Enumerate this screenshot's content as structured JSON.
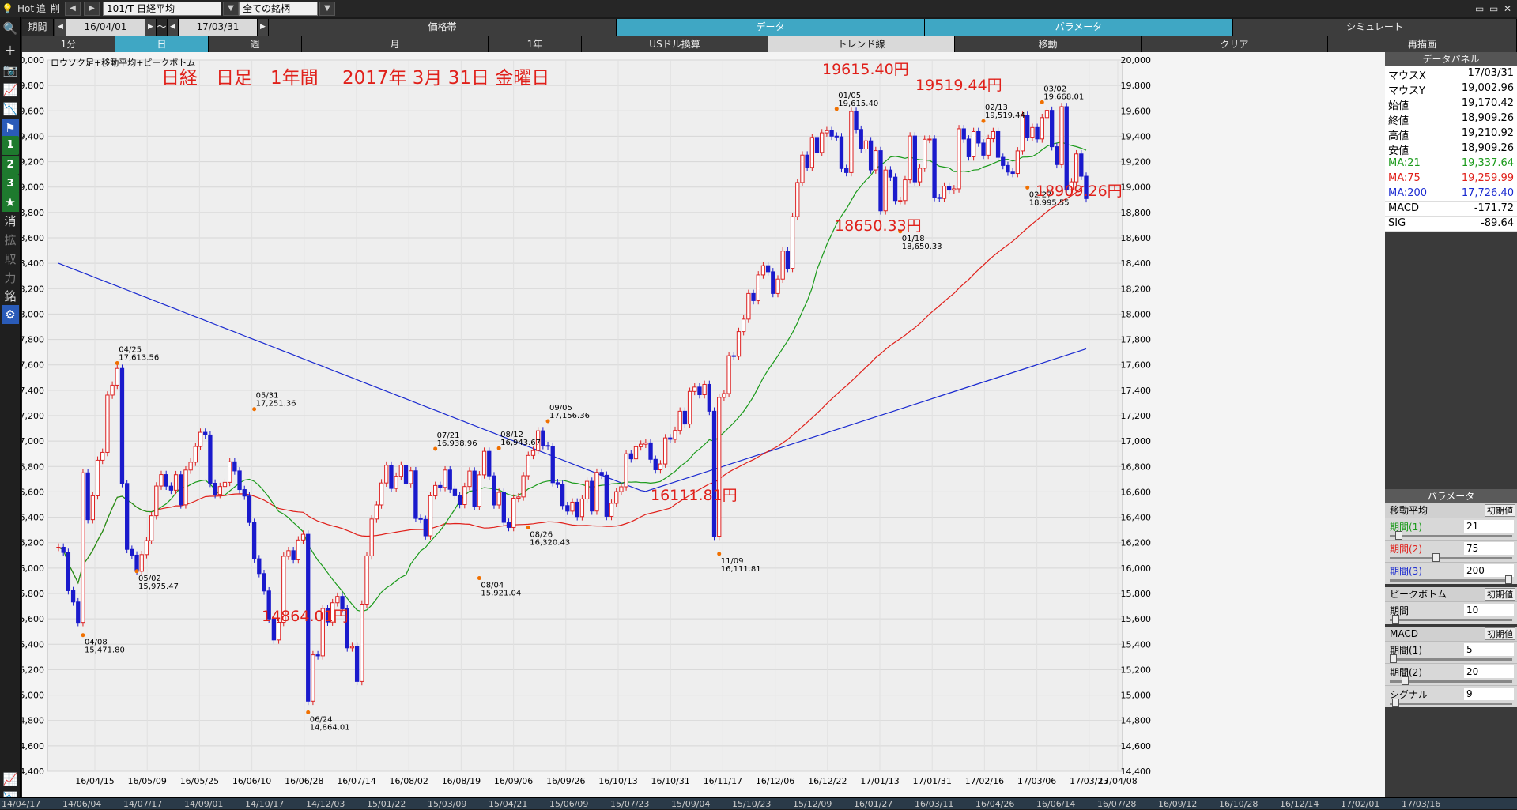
{
  "topbar": {
    "hot": "Hot",
    "add": "追",
    "del": "削",
    "symbol": "101/T 日経平均",
    "list": "全ての銘柄"
  },
  "period": {
    "label": "期間",
    "from": "16/04/01",
    "sep": "～",
    "to": "17/03/31"
  },
  "tabs_row2": [
    "価格帯",
    "データ",
    "パラメータ",
    "シミュレート"
  ],
  "tabs_row3": [
    "1分",
    "日",
    "週",
    "月",
    "1年",
    "USドル換算",
    "トレンド線",
    "移動",
    "クリア",
    "再描画"
  ],
  "tools": {
    "n1": "1",
    "n2": "2",
    "n3": "3",
    "k1": "消",
    "k2": "拡",
    "k3": "取",
    "k4": "力",
    "k5": "銘"
  },
  "chart_data": {
    "type": "candlestick",
    "legend": "ロウソク足+移動平均+ピークボトム",
    "title": "日経　日足　1年間　 2017年 3月 31日 金曜日",
    "ylim": [
      14400,
      20000
    ],
    "ticks_y": [
      "20,000",
      "19,800",
      "19,600",
      "19,400",
      "19,200",
      "19,000",
      "18,800",
      "18,600",
      "18,400",
      "18,200",
      "18,000",
      "17,800",
      "17,600",
      "17,400",
      "17,200",
      "17,000",
      "16,800",
      "16,600",
      "16,400",
      "16,200",
      "16,000",
      "15,800",
      "15,600",
      "15,400",
      "15,200",
      "15,000",
      "14,800",
      "14,600",
      "14,400"
    ],
    "ticks_x": [
      "16/04/15",
      "16/05/09",
      "16/05/25",
      "16/06/10",
      "16/06/28",
      "16/07/14",
      "16/08/02",
      "16/08/19",
      "16/09/06",
      "16/09/26",
      "16/10/13",
      "16/10/31",
      "16/11/17",
      "16/12/06",
      "16/12/22",
      "17/01/13",
      "17/01/31",
      "17/02/16",
      "17/03/06",
      "17/03/23",
      "17/04/08"
    ],
    "closes": [
      16164,
      16123,
      15822,
      15733,
      15572,
      16750,
      16381,
      16569,
      16849,
      16911,
      17362,
      17440,
      17572,
      16666,
      16147,
      16102,
      15975,
      16106,
      16216,
      16412,
      16646,
      16736,
      16645,
      16613,
      16735,
      16498,
      16772,
      16834,
      16957,
      17069,
      17048,
      16668,
      16580,
      16642,
      16675,
      16837,
      16765,
      16618,
      16567,
      16359,
      16073,
      15957,
      15820,
      15600,
      15434,
      15573,
      16093,
      16137,
      16065,
      16221,
      16266,
      14952,
      15317,
      15309,
      15682,
      15575,
      15727,
      15777,
      15679,
      15372,
      15382,
      15107,
      15716,
      16096,
      16386,
      16497,
      16670,
      16810,
      16627,
      16723,
      16811,
      16665,
      16766,
      16391,
      16383,
      16254,
      16569,
      16650,
      16635,
      16772,
      16620,
      16569,
      16500,
      16642,
      16764,
      16486,
      16734,
      16919,
      16726,
      16497,
      16596,
      16360,
      16320,
      16550,
      16560,
      16727,
      16887,
      16925,
      17081,
      16965,
      16959,
      16672,
      16658,
      16492,
      16448,
      16519,
      16405,
      16544,
      16683,
      16449,
      16754,
      16731,
      16407,
      16510,
      16602,
      16640,
      16900,
      16860,
      16955,
      16975,
      16986,
      16856,
      16774,
      16820,
      17025,
      17014,
      17084,
      17235,
      17134,
      17391,
      17425,
      17365,
      17446,
      17235,
      16251,
      17344,
      17374,
      17672,
      17668,
      17862,
      17960,
      18162,
      18106,
      18308,
      18381,
      18333,
      18162,
      18275,
      18496,
      18360,
      18767,
      19036,
      19252,
      19155,
      19391,
      19273,
      19427,
      19444,
      19401,
      19396,
      19146,
      19114,
      19595,
      19454,
      19300,
      19364,
      19135,
      19287,
      18813,
      19134,
      19078,
      18894,
      18894,
      19057,
      19402,
      19041,
      19148,
      19376,
      19378,
      18918,
      18910,
      19007,
      18976,
      18986,
      19459,
      19378,
      19238,
      19437,
      19347,
      19251,
      19381,
      19437,
      19234,
      19170,
      19118,
      19107,
      19285,
      19564,
      19393,
      19469,
      19379,
      19547,
      19604,
      19318,
      19177,
      19633,
      18979,
      19041,
      19261,
      19085,
      18909
    ],
    "ma21_end": 19337.64,
    "ma75_end": 19259.99,
    "ma200_end": 17726.4,
    "peaks": [
      {
        "date": "04/08",
        "value": "15,471.80",
        "type": "bottom"
      },
      {
        "date": "04/25",
        "value": "17,613.56",
        "type": "peak"
      },
      {
        "date": "05/02",
        "value": "15,975.47",
        "type": "bottom"
      },
      {
        "date": "05/31",
        "value": "17,251.36",
        "type": "peak"
      },
      {
        "date": "06/24",
        "value": "14,864.01",
        "type": "bottom"
      },
      {
        "date": "07/21",
        "value": "16,938.96",
        "type": "peak"
      },
      {
        "date": "08/04",
        "value": "15,921.04",
        "type": "bottom"
      },
      {
        "date": "08/12",
        "value": "16,943.67",
        "type": "peak"
      },
      {
        "date": "08/26",
        "value": "16,320.43",
        "type": "bottom"
      },
      {
        "date": "09/05",
        "value": "17,156.36",
        "type": "peak"
      },
      {
        "date": "11/09",
        "value": "16,111.81",
        "type": "bottom"
      },
      {
        "date": "01/05",
        "value": "19,615.40",
        "type": "peak"
      },
      {
        "date": "01/18",
        "value": "18,650.33",
        "type": "bottom"
      },
      {
        "date": "02/13",
        "value": "19,519.44",
        "type": "peak"
      },
      {
        "date": "02/27",
        "value": "18,995.55",
        "type": "bottom"
      },
      {
        "date": "03/02",
        "value": "19,668.01",
        "type": "peak"
      }
    ],
    "annotations": [
      "19615.40円",
      "19519.44円",
      "18650.33円",
      "18909.26円",
      "16111.81円",
      "14864.01円"
    ]
  },
  "datapanel": {
    "title": "データパネル",
    "rows": [
      {
        "k": "マウスX",
        "v": "17/03/31"
      },
      {
        "k": "マウスY",
        "v": "19,002.96"
      },
      {
        "k": "始値",
        "v": "19,170.42"
      },
      {
        "k": "終値",
        "v": "18,909.26"
      },
      {
        "k": "高値",
        "v": "19,210.92"
      },
      {
        "k": "安値",
        "v": "18,909.26"
      }
    ],
    "ma": [
      {
        "k": "MA:21",
        "v": "19,337.64",
        "color": "#1a9a1a"
      },
      {
        "k": "MA:75",
        "v": "19,259.99",
        "color": "#e0201a"
      },
      {
        "k": "MA:200",
        "v": "17,726.40",
        "color": "#1a2ad0"
      }
    ],
    "macd": [
      {
        "k": "MACD",
        "v": "-171.72"
      },
      {
        "k": "SIG",
        "v": "-89.64"
      }
    ]
  },
  "params": {
    "title": "パラメータ",
    "ma_title": "移動平均",
    "init": "初期値",
    "ma_rows": [
      {
        "k": "期間(1)",
        "v": "21",
        "color": "#1a9a1a",
        "pos": 0.05
      },
      {
        "k": "期間(2)",
        "v": "75",
        "color": "#e0201a",
        "pos": 0.37
      },
      {
        "k": "期間(3)",
        "v": "200",
        "color": "#1a2ad0",
        "pos": 1.0
      }
    ],
    "pb_title": "ピークボトム",
    "pb_rows": [
      {
        "k": "期間",
        "v": "10",
        "color": "#000",
        "pos": 0.02
      }
    ],
    "macd_title": "MACD",
    "macd_rows": [
      {
        "k": "期間(1)",
        "v": "5",
        "color": "#000",
        "pos": 0.0
      },
      {
        "k": "期間(2)",
        "v": "20",
        "color": "#000",
        "pos": 0.1
      },
      {
        "k": "シグナル",
        "v": "9",
        "color": "#000",
        "pos": 0.02
      }
    ]
  },
  "bottombar": [
    "14/04/17",
    "14/06/04",
    "14/07/17",
    "14/09/01",
    "14/10/17",
    "14/12/03",
    "15/01/22",
    "15/03/09",
    "15/04/21",
    "15/06/09",
    "15/07/23",
    "15/09/04",
    "15/10/23",
    "15/12/09",
    "16/01/27",
    "16/03/11",
    "16/04/26",
    "16/06/14",
    "16/07/28",
    "16/09/12",
    "16/10/28",
    "16/12/14",
    "17/02/01",
    "17/03/16"
  ]
}
